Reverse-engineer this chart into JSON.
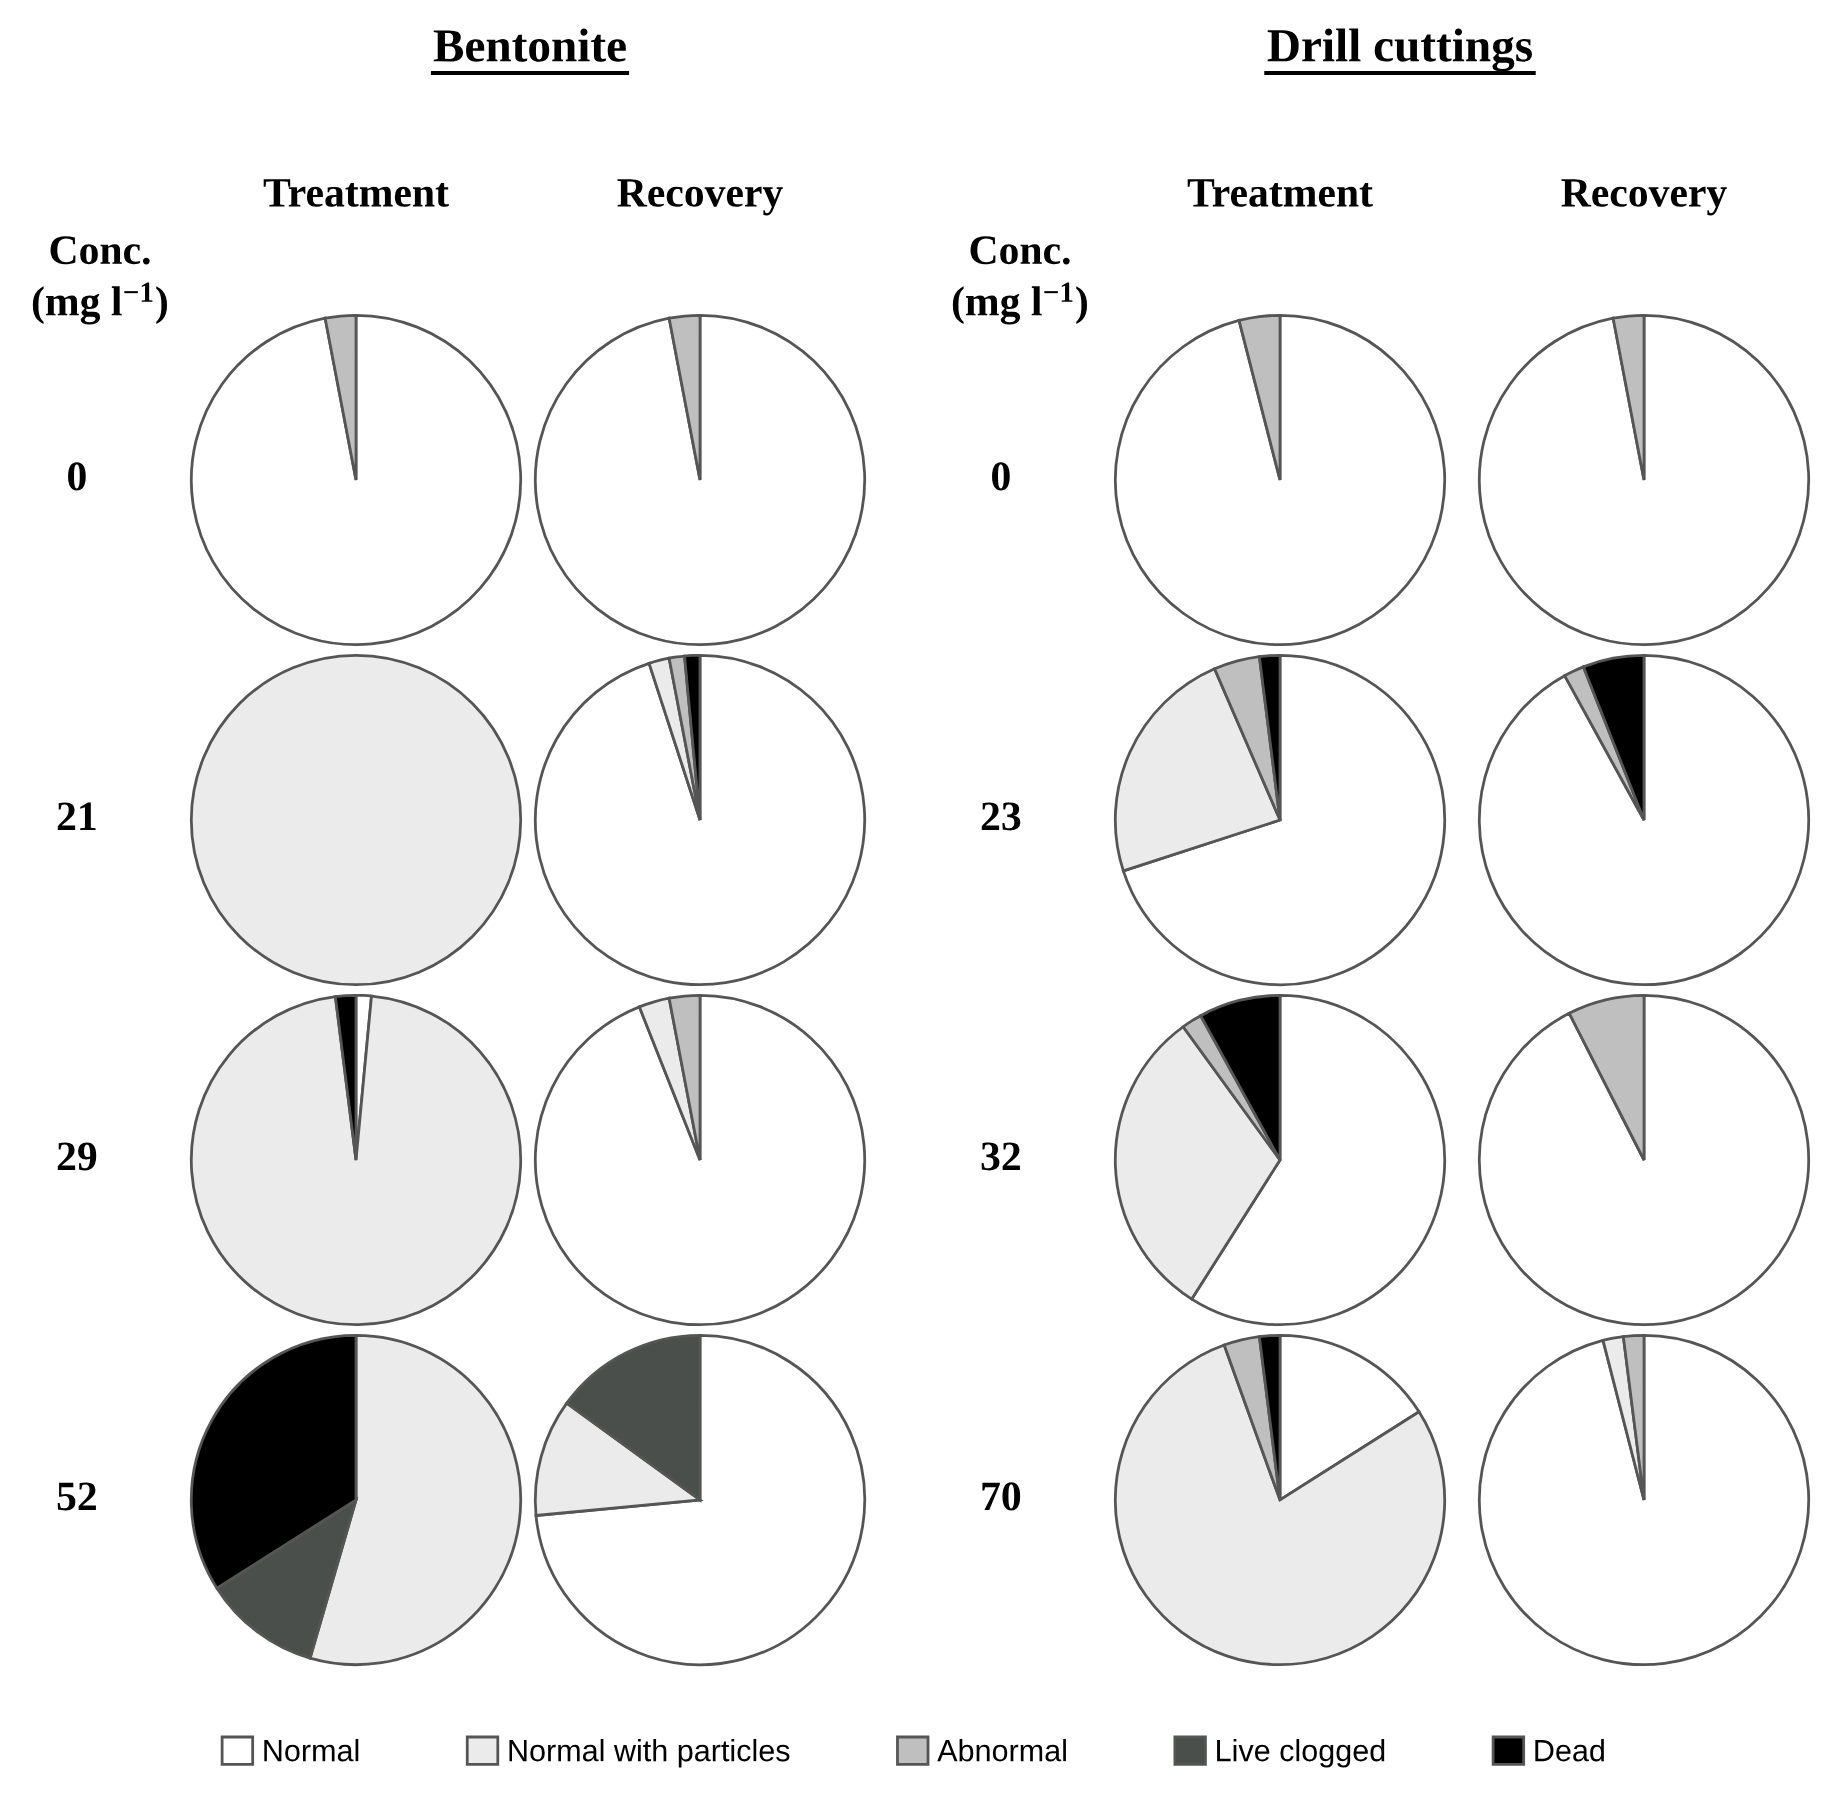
{
  "chart_data": [
    {
      "type": "other",
      "title": "Bentonite",
      "annotations": [
        "Conc.\n(mg l$^{−1}$)"
      ]
    },
    {
      "type": "other",
      "title": "Drill cuttings",
      "annotations": [
        "Conc.\n(mg l$^{−1}$)"
      ]
    },
    {
      "type": "pie",
      "title": "Treatment",
      "ylabel": "0",
      "legend": "bottom",
      "categories": [
        "Normal",
        "Normal with particles",
        "Abnormal",
        "Live clogged",
        "Dead"
      ],
      "values": [
        97,
        0,
        3,
        0,
        0
      ],
      "colors": [
        "#ffffff",
        "#ebebeb",
        "#bfbfbf",
        "#4a4f4c",
        "#000000"
      ]
    },
    {
      "type": "pie",
      "title": "Recovery",
      "categories": [
        null,
        null,
        null,
        null,
        null
      ],
      "values": [
        97,
        0,
        3,
        0,
        0
      ],
      "colors": [
        "#ffffff",
        "#ebebeb",
        "#bfbfbf",
        "#4a4f4c",
        "#000000"
      ]
    },
    {
      "type": "pie",
      "title": "Treatment",
      "ylabel": "0",
      "categories": [
        null,
        null,
        null,
        null,
        null
      ],
      "values": [
        96,
        0,
        4,
        0,
        0
      ],
      "colors": [
        "#ffffff",
        "#ebebeb",
        "#bfbfbf",
        "#4a4f4c",
        "#000000"
      ]
    },
    {
      "type": "pie",
      "title": "Recovery",
      "categories": [
        null,
        null,
        null,
        null,
        null
      ],
      "values": [
        97,
        0,
        3,
        0,
        0
      ],
      "colors": [
        "#ffffff",
        "#ebebeb",
        "#bfbfbf",
        "#4a4f4c",
        "#000000"
      ]
    },
    {
      "type": "pie",
      "ylabel": "21",
      "categories": [
        null,
        null,
        null,
        null,
        null
      ],
      "values": [
        0,
        100,
        0,
        0,
        0
      ],
      "colors": [
        "#ffffff",
        "#ebebeb",
        "#bfbfbf",
        "#4a4f4c",
        "#000000"
      ]
    },
    {
      "type": "pie",
      "categories": [
        null,
        null,
        null,
        null,
        null
      ],
      "values": [
        95,
        2,
        1.5,
        0,
        1.5
      ],
      "colors": [
        "#ffffff",
        "#ebebeb",
        "#bfbfbf",
        "#4a4f4c",
        "#000000"
      ]
    },
    {
      "type": "pie",
      "ylabel": "23",
      "categories": [
        null,
        null,
        null,
        null,
        null
      ],
      "values": [
        70,
        23.5,
        4.5,
        0,
        2
      ],
      "colors": [
        "#ffffff",
        "#ebebeb",
        "#bfbfbf",
        "#4a4f4c",
        "#000000"
      ]
    },
    {
      "type": "pie",
      "categories": [
        null,
        null,
        null,
        null,
        null
      ],
      "values": [
        92,
        0,
        2,
        0,
        6
      ],
      "colors": [
        "#ffffff",
        "#ebebeb",
        "#bfbfbf",
        "#4a4f4c",
        "#000000"
      ]
    },
    {
      "type": "pie",
      "ylabel": "29",
      "categories": [
        null,
        null,
        null,
        null,
        null
      ],
      "values": [
        1.5,
        96.5,
        0,
        0,
        2
      ],
      "colors": [
        "#ffffff",
        "#ebebeb",
        "#bfbfbf",
        "#4a4f4c",
        "#000000"
      ]
    },
    {
      "type": "pie",
      "categories": [
        null,
        null,
        null,
        null,
        null
      ],
      "values": [
        94,
        3,
        3,
        0,
        0
      ],
      "colors": [
        "#ffffff",
        "#ebebeb",
        "#bfbfbf",
        "#4a4f4c",
        "#000000"
      ]
    },
    {
      "type": "pie",
      "ylabel": "32",
      "categories": [
        null,
        null,
        null,
        null,
        null
      ],
      "values": [
        59,
        31,
        2,
        0,
        8
      ],
      "colors": [
        "#ffffff",
        "#ebebeb",
        "#bfbfbf",
        "#4a4f4c",
        "#000000"
      ]
    },
    {
      "type": "pie",
      "categories": [
        null,
        null,
        null,
        null,
        null
      ],
      "values": [
        92.5,
        0,
        7.5,
        0,
        0
      ],
      "colors": [
        "#ffffff",
        "#ebebeb",
        "#bfbfbf",
        "#4a4f4c",
        "#000000"
      ]
    },
    {
      "type": "pie",
      "ylabel": "52",
      "categories": [
        null,
        null,
        null,
        null,
        null
      ],
      "values": [
        0,
        54.5,
        0,
        11.5,
        34
      ],
      "colors": [
        "#ffffff",
        "#ebebeb",
        "#bfbfbf",
        "#4a4f4c",
        "#000000"
      ]
    },
    {
      "type": "pie",
      "categories": [
        null,
        null,
        null,
        null,
        null
      ],
      "values": [
        73.5,
        11.5,
        0,
        15,
        0
      ],
      "colors": [
        "#ffffff",
        "#ebebeb",
        "#bfbfbf",
        "#4a4f4c",
        "#000000"
      ]
    },
    {
      "type": "pie",
      "ylabel": "70",
      "categories": [
        null,
        null,
        null,
        null,
        null
      ],
      "values": [
        16,
        78.5,
        3.5,
        0,
        2
      ],
      "colors": [
        "#ffffff",
        "#ebebeb",
        "#bfbfbf",
        "#4a4f4c",
        "#000000"
      ]
    },
    {
      "type": "pie",
      "categories": [
        null,
        null,
        null,
        null,
        null
      ],
      "values": [
        96,
        2,
        2,
        0,
        0
      ],
      "colors": [
        "#ffffff",
        "#ebebeb",
        "#bfbfbf",
        "#4a4f4c",
        "#000000"
      ]
    }
  ]
}
